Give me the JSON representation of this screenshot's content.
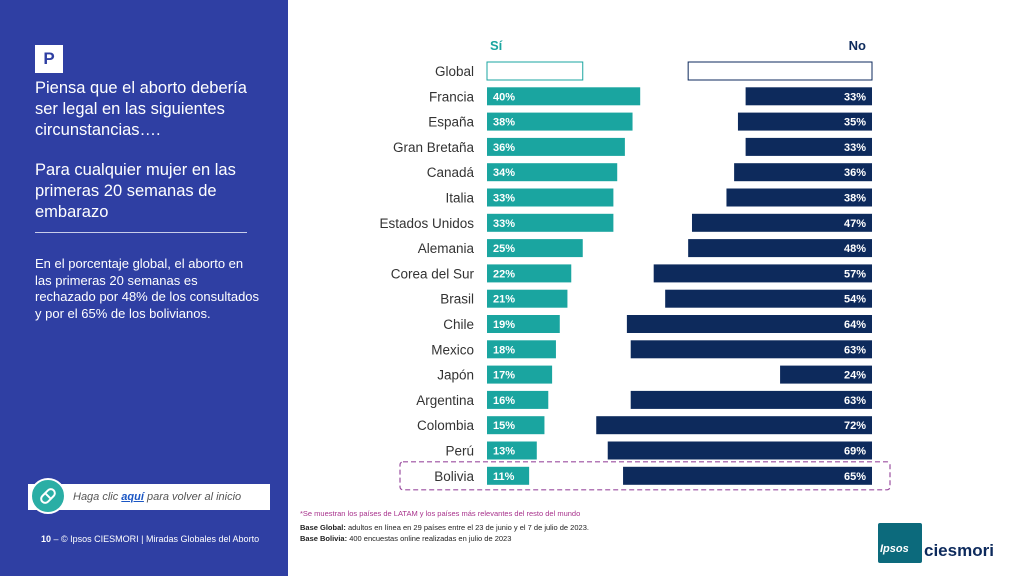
{
  "sidebar": {
    "badge": "P",
    "question": "Piensa que el aborto debería ser legal en las siguientes circunstancias….",
    "sub_question": "Para cualquier mujer en las primeras 20 semanas de embarazo",
    "insight": "En el porcentaje global, el aborto en las primeras 20 semanas es rechazado por 48% de los consultados y por el 65% de los bolivianos.",
    "back_prefix": "Haga clic ",
    "back_link": "aquí",
    "back_suffix": " para volver al inicio",
    "page_number": "10",
    "footer_text": " – © Ipsos CIESMORI | Miradas Globales del Aborto"
  },
  "colors": {
    "panel": "#2f3fa3",
    "si": "#1aa5a0",
    "no": "#0d2a5c",
    "highlight_border": "#9b4fa0"
  },
  "chart_data": {
    "type": "bar",
    "layout": "diverging",
    "headers": {
      "si": "Sí",
      "no": "No"
    },
    "categories": [
      "Global",
      "Francia",
      "España",
      "Gran Bretaña",
      "Canadá",
      "Italia",
      "Estados Unidos",
      "Alemania",
      "Corea del Sur",
      "Brasil",
      "Chile",
      "Mexico",
      "Japón",
      "Argentina",
      "Colombia",
      "Perú",
      "Bolivia"
    ],
    "series": [
      {
        "name": "Sí",
        "values": [
          25,
          40,
          38,
          36,
          34,
          33,
          33,
          25,
          22,
          21,
          19,
          18,
          17,
          16,
          15,
          13,
          11
        ]
      },
      {
        "name": "No",
        "values": [
          48,
          33,
          35,
          33,
          36,
          38,
          47,
          48,
          57,
          54,
          64,
          63,
          24,
          63,
          72,
          69,
          65
        ]
      }
    ],
    "outlined_category": "Global",
    "highlighted_category": "Bolivia",
    "value_suffix": "%"
  },
  "notes": {
    "footnote": "*Se muestran los países de LATAM y los países más relevantes del resto del mundo",
    "base_global_label": "Base Global:",
    "base_global_text": " adultos en línea en 29 países entre el 23 de junio y el 7 de julio de 2023.",
    "base_bolivia_label": "Base Bolivia:",
    "base_bolivia_text": " 400 encuestas online realizadas en julio de 2023"
  },
  "logo": {
    "ipsos": "Ipsos",
    "ciesmori": "ciesmori"
  }
}
